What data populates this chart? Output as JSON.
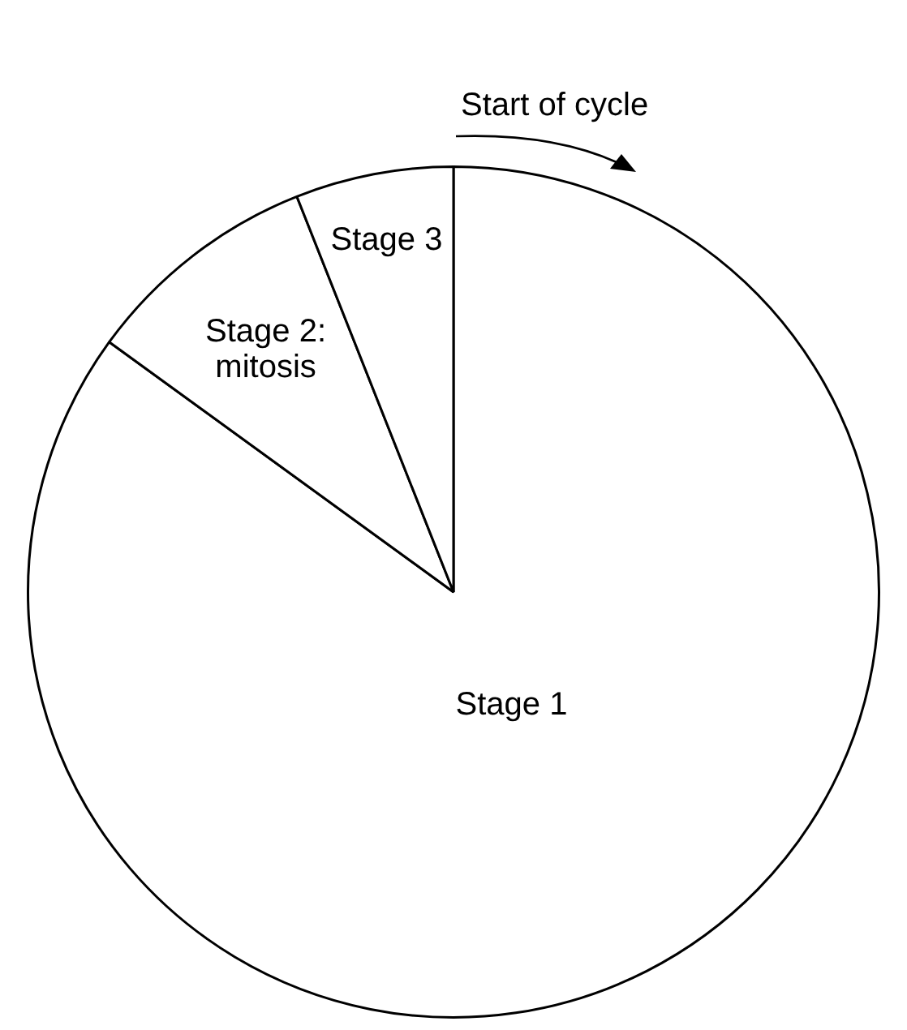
{
  "chart_data": {
    "type": "pie",
    "categories": [
      "Stage 1",
      "Stage 2: mitosis",
      "Stage 3"
    ],
    "values": [
      85,
      9,
      6
    ],
    "colors": [
      "#ffffff",
      "#ffffff",
      "#ffffff"
    ],
    "annotations": [
      "Start of cycle"
    ]
  }
}
